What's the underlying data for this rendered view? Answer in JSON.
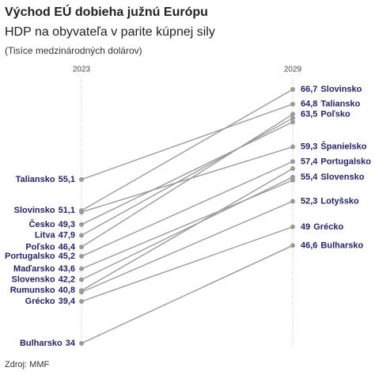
{
  "chart_data": {
    "type": "slope",
    "title": "Východ EÚ dobieha južnú Európu",
    "subtitle": "HDP na obyvateľa v parite kúpnej sily",
    "note": "(Tisíce medzinárodných dolárov)",
    "source": "Zdroj: MMF",
    "categories": [
      "2023",
      "2029"
    ],
    "color": "#9a9a9a",
    "series": [
      {
        "name": "Taliansko",
        "values": [
          55.1,
          64.8
        ],
        "value_labels": [
          "55,1",
          "64,8"
        ]
      },
      {
        "name": "Slovinsko",
        "values": [
          51.1,
          66.7
        ],
        "value_labels": [
          "51,1",
          "66,7"
        ]
      },
      {
        "name": "Česko",
        "values": [
          49.3,
          62.5
        ],
        "value_labels": [
          "49,3",
          null
        ]
      },
      {
        "name": "Litva",
        "values": [
          47.9,
          63.0
        ],
        "value_labels": [
          "47,9",
          null
        ]
      },
      {
        "name": "Poľsko",
        "values": [
          46.4,
          63.5
        ],
        "value_labels": [
          "46,4",
          "63,5"
        ]
      },
      {
        "name": "Portugalsko",
        "values": [
          45.2,
          57.4
        ],
        "value_labels": [
          "45,2",
          "57,4"
        ]
      },
      {
        "name": "Maďarsko",
        "values": [
          43.6,
          55.0
        ],
        "value_labels": [
          "43,6",
          null
        ]
      },
      {
        "name": "Slovensko",
        "values": [
          42.2,
          55.4
        ],
        "value_labels": [
          "42,2",
          "55,4"
        ]
      },
      {
        "name": "Rumunsko",
        "values": [
          40.8,
          56.5
        ],
        "value_labels": [
          "40,8",
          null
        ]
      },
      {
        "name": "Grécko",
        "values": [
          39.4,
          49
        ],
        "value_labels": [
          "39,4",
          "49"
        ]
      },
      {
        "name": "Bulharsko",
        "values": [
          34,
          46.6
        ],
        "value_labels": [
          "34",
          "46,6"
        ]
      },
      {
        "name": "Španielsko",
        "values": [
          50.9,
          59.3
        ],
        "value_labels": [
          null,
          "59,3"
        ]
      },
      {
        "name": "Lotyšsko",
        "values": [
          40.6,
          52.3
        ],
        "value_labels": [
          null,
          "52,3"
        ]
      }
    ]
  }
}
